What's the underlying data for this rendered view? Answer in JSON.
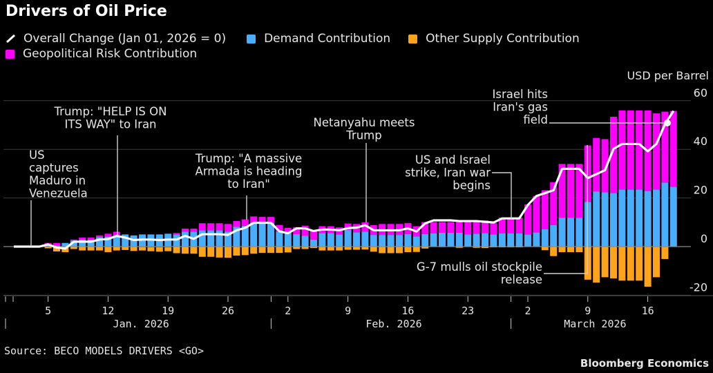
{
  "title": "Drivers of Oil Price",
  "legend": {
    "overall": "Overall Change (Jan 01, 2026 = 0)",
    "demand": "Demand Contribution",
    "supply": "Other Supply Contribution",
    "geo": "Geopolitical Risk Contribution"
  },
  "colors": {
    "demand": "#4aaeff",
    "geo": "#ff00ff",
    "supply": "#ffa31a",
    "overall": "#ffffff",
    "grid": "#3c3c3c",
    "zero": "#8a8a8a"
  },
  "source": "Source: BECO MODELS DRIVERS <GO>",
  "brand": "Bloomberg Economics",
  "chart_data": {
    "type": "bar",
    "stacked": true,
    "title": "Drivers of Oil Price",
    "ylabel": "USD per Barrel",
    "ylim": [
      -22,
      62
    ],
    "yticks": [
      "60",
      "40",
      "20",
      "0",
      "-20"
    ],
    "ytick_values": [
      60,
      40,
      20,
      0,
      -20
    ],
    "grid": true,
    "legend_placement": "top-left",
    "x": [
      "Jan 1",
      "Jan 2",
      "Jan 3",
      "Jan 4",
      "Jan 5",
      "Jan 6",
      "Jan 7",
      "Jan 8",
      "Jan 9",
      "Jan 10",
      "Jan 11",
      "Jan 12",
      "Jan 13",
      "Jan 14",
      "Jan 15",
      "Jan 16",
      "Jan 17",
      "Jan 18",
      "Jan 19",
      "Jan 20",
      "Jan 21",
      "Jan 22",
      "Jan 23",
      "Jan 24",
      "Jan 25",
      "Jan 26",
      "Jan 27",
      "Jan 28",
      "Jan 29",
      "Jan 30",
      "Jan 31",
      "Feb 1",
      "Feb 2",
      "Feb 3",
      "Feb 4",
      "Feb 5",
      "Feb 6",
      "Feb 7",
      "Feb 8",
      "Feb 9",
      "Feb 10",
      "Feb 11",
      "Feb 12",
      "Feb 13",
      "Feb 14",
      "Feb 15",
      "Feb 16",
      "Feb 17",
      "Feb 18",
      "Feb 19",
      "Feb 20",
      "Feb 21",
      "Feb 22",
      "Feb 23",
      "Feb 24",
      "Feb 25",
      "Feb 26",
      "Feb 27",
      "Feb 28",
      "Mar 1",
      "Mar 2",
      "Mar 3",
      "Mar 4",
      "Mar 5",
      "Mar 6",
      "Mar 7",
      "Mar 8",
      "Mar 9",
      "Mar 10",
      "Mar 11",
      "Mar 12",
      "Mar 13",
      "Mar 14",
      "Mar 15",
      "Mar 16",
      "Mar 17",
      "Mar 18",
      "Mar 19"
    ],
    "series": [
      {
        "name": "Demand Contribution",
        "key": "demand",
        "values": [
          0,
          0,
          0,
          0,
          0.6,
          0.5,
          1.5,
          2.5,
          2.9,
          2.9,
          3.9,
          4.1,
          4.6,
          5,
          4.6,
          5,
          5,
          5,
          5.3,
          5,
          6.1,
          6.1,
          6.7,
          6.7,
          6.7,
          6.2,
          8.1,
          8.6,
          9.8,
          9.8,
          9.8,
          6.2,
          5.6,
          5.1,
          4.5,
          2.9,
          5.6,
          5.6,
          5,
          6.9,
          5.9,
          6.1,
          4.8,
          4.8,
          4.8,
          4.8,
          5.2,
          4.2,
          5.2,
          5.5,
          5.7,
          5.7,
          5.7,
          5,
          5.3,
          5.6,
          5,
          5.5,
          5.5,
          5.5,
          5,
          5.8,
          7.2,
          8.9,
          11.9,
          11.9,
          11.9,
          18.4,
          22.7,
          22.3,
          22,
          23.5,
          23.5,
          23.5,
          22.9,
          23.5,
          26.3,
          24.6
        ]
      },
      {
        "name": "Geopolitical Risk Contribution",
        "key": "geo",
        "values": [
          0,
          0,
          0,
          0,
          0.9,
          1,
          0,
          0.4,
          0.8,
          0.8,
          0.7,
          1.2,
          1.5,
          0,
          0,
          -0.2,
          -0.3,
          -0.3,
          -0.3,
          0.6,
          1.3,
          1.3,
          2.9,
          2.9,
          2.9,
          3.1,
          2.4,
          2.6,
          2.6,
          2.4,
          2.4,
          2.7,
          2.1,
          2.9,
          4.1,
          3.8,
          2.8,
          2.8,
          2.9,
          2.6,
          3.4,
          3.9,
          4,
          4.5,
          4.5,
          4.5,
          4.5,
          4.2,
          4.9,
          4.6,
          4.4,
          4.4,
          4.4,
          5.1,
          4.8,
          5.1,
          4.7,
          6.4,
          6.4,
          6.4,
          12.4,
          15,
          16,
          17.6,
          22.1,
          22.1,
          22.1,
          23.2,
          22,
          21.9,
          31.4,
          32.5,
          32.5,
          32.5,
          33.1,
          31.3,
          29.2,
          31.2
        ]
      },
      {
        "name": "Other Supply Contribution",
        "key": "supply",
        "values": [
          0,
          0,
          0,
          0,
          -0.7,
          -2,
          -2.3,
          -1,
          -1.6,
          -1.6,
          -1.6,
          -2.3,
          -1.6,
          -1.4,
          -1.8,
          -1.4,
          -1.6,
          -1.8,
          -1.6,
          -2.7,
          -2.9,
          -2.9,
          -4.2,
          -4.2,
          -4.5,
          -4.6,
          -3.7,
          -3.5,
          -2.9,
          -2.6,
          -2.6,
          -2.6,
          -2.4,
          -1,
          -1,
          -0.6,
          -1.6,
          -1.6,
          -1.6,
          -1.3,
          -1.3,
          -1.2,
          -2.1,
          -2.7,
          -2.7,
          -2.7,
          -2.3,
          -2.2,
          -0.8,
          0,
          -0.2,
          0,
          -0.5,
          0,
          -0.5,
          -0.6,
          -0.3,
          -0.3,
          -0.3,
          -0.3,
          0,
          0,
          -1.5,
          -3.9,
          -2.3,
          -2.3,
          -2.3,
          -13.6,
          -14.8,
          -12.6,
          -13.1,
          -14,
          -14,
          -14,
          -16.5,
          -12.6,
          -5.1,
          0
        ]
      },
      {
        "name": "Overall Change (Jan 01, 2026 = 0)",
        "key": "overall",
        "type": "line",
        "values": [
          0,
          0,
          0,
          0,
          0.9,
          -0.4,
          -0.8,
          2,
          2,
          2,
          2.9,
          3.1,
          4.4,
          3.7,
          2.7,
          2.9,
          2.9,
          2.7,
          2.9,
          2.9,
          4.4,
          3.2,
          5.1,
          5.1,
          5.1,
          4.8,
          6.7,
          7.7,
          9.8,
          9.8,
          9.8,
          6.3,
          5.5,
          7.5,
          7.5,
          6.4,
          7,
          7,
          6.7,
          7.6,
          7.8,
          8.8,
          6.7,
          6.7,
          6.7,
          6.7,
          7.5,
          6.2,
          9.5,
          10.8,
          10.8,
          10.8,
          10.5,
          10.5,
          10.5,
          10.2,
          9.9,
          11.6,
          11.6,
          11.6,
          17.1,
          20.8,
          22,
          23.2,
          32,
          32,
          32,
          28.2,
          29.8,
          31.4,
          40.2,
          42.2,
          42.2,
          42.2,
          39.2,
          42.2,
          50.3,
          55.8
        ]
      }
    ],
    "xticks": [
      {
        "label": "5",
        "index": 4
      },
      {
        "label": "12",
        "index": 11
      },
      {
        "label": "19",
        "index": 18
      },
      {
        "label": "26",
        "index": 25
      },
      {
        "label": "2",
        "index": 32
      },
      {
        "label": "9",
        "index": 39
      },
      {
        "label": "16",
        "index": 46
      },
      {
        "label": "23",
        "index": 53
      },
      {
        "label": "2",
        "index": 60
      },
      {
        "label": "9",
        "index": 67
      },
      {
        "label": "16",
        "index": 74
      }
    ],
    "months": [
      {
        "label": "Jan. 2026",
        "start": 0,
        "end": 31
      },
      {
        "label": "Feb. 2026",
        "start": 31,
        "end": 59
      },
      {
        "label": "March 2026",
        "start": 59,
        "end": 78
      }
    ],
    "annotations": [
      {
        "index": 2,
        "lines": [
          "US",
          "captures",
          "Maduro in",
          "Venezuela"
        ]
      },
      {
        "index": 12,
        "lines": [
          "Trump: \"HELP IS ON",
          "ITS WAY\" to Iran"
        ]
      },
      {
        "index": 27,
        "lines": [
          "Trump: \"A massive",
          "Armada is heading",
          "to Iran\""
        ]
      },
      {
        "index": 41,
        "lines": [
          "Netanyahu meets",
          "Trump"
        ]
      },
      {
        "index": 58,
        "lines": [
          "US and Israel",
          "strike, Iran war",
          "begins"
        ]
      },
      {
        "index": 67,
        "lines": [
          "G-7 mulls oil stockpile",
          "release"
        ]
      },
      {
        "index": 76,
        "lines": [
          "Israel hits",
          "Iran's gas",
          "field"
        ]
      }
    ]
  }
}
